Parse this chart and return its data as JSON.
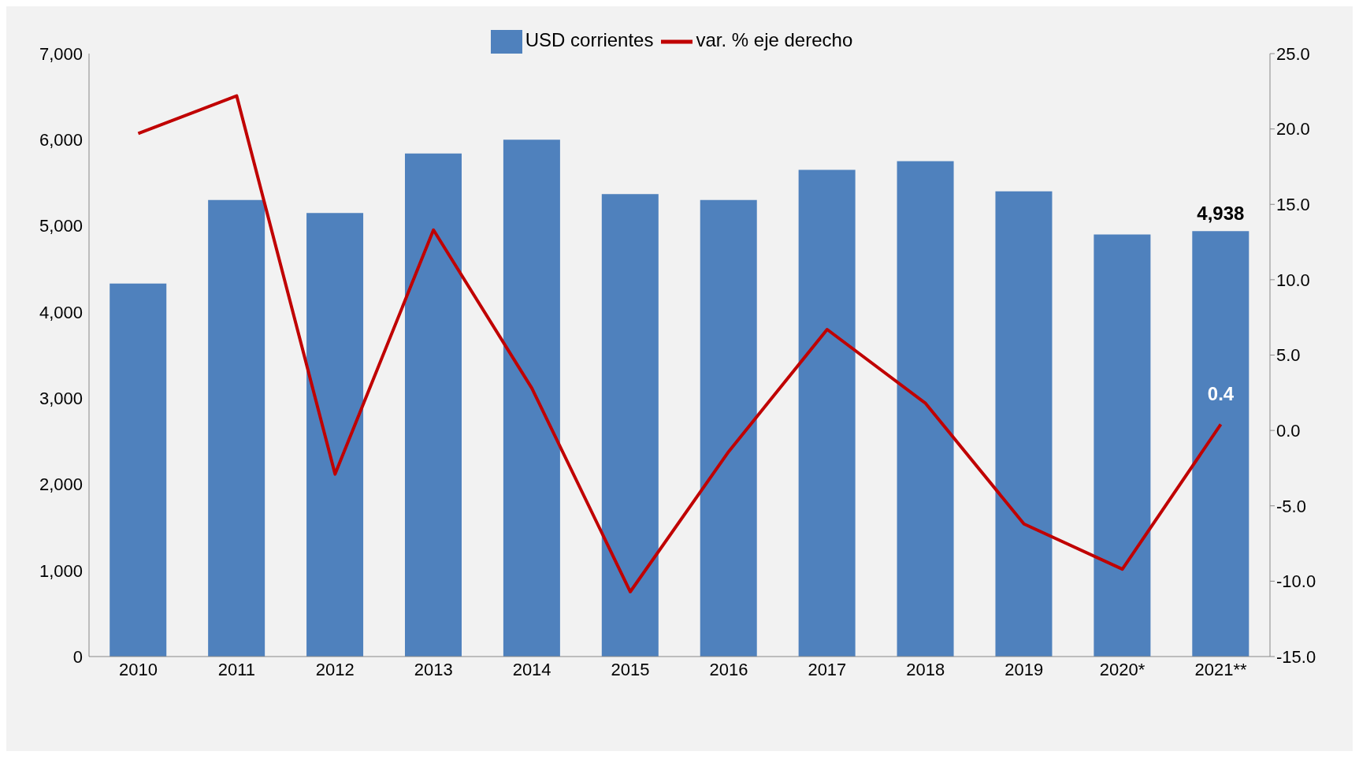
{
  "chart_data": {
    "type": "bar",
    "categories": [
      "2010",
      "2011",
      "2012",
      "2013",
      "2014",
      "2015",
      "2016",
      "2017",
      "2018",
      "2019",
      "2020*",
      "2021**"
    ],
    "series": [
      {
        "name": "USD corrientes",
        "color": "#4f81bd",
        "values": [
          4330,
          5300,
          5150,
          5840,
          6000,
          5370,
          5300,
          5650,
          5750,
          5400,
          4900,
          4938
        ],
        "value_labels": [
          null,
          null,
          null,
          null,
          null,
          null,
          null,
          null,
          null,
          null,
          null,
          "4,938"
        ]
      },
      {
        "name": "var. % eje derecho",
        "type": "line",
        "axis": "y2",
        "color": "#c00000",
        "values": [
          19.7,
          22.2,
          -2.9,
          13.3,
          2.8,
          -10.7,
          -1.4,
          6.7,
          1.8,
          -6.2,
          -9.2,
          0.4
        ],
        "value_labels": [
          null,
          null,
          null,
          null,
          null,
          null,
          null,
          null,
          null,
          null,
          null,
          "0.4"
        ]
      }
    ],
    "ylim": [
      0,
      7000
    ],
    "yticks": [
      0,
      {
        "value": 1000,
        "label": "1,000"
      },
      {
        "value": 2000,
        "label": "2,000"
      },
      {
        "value": 3000,
        "label": "3,000"
      },
      {
        "value": 4000,
        "label": "4,000"
      },
      {
        "value": 5000,
        "label": "5,000"
      },
      {
        "value": 6000,
        "label": "6,000"
      },
      {
        "value": 7000,
        "label": "7,000"
      }
    ],
    "y2lim": [
      -15,
      25
    ],
    "y2ticks": [
      {
        "value": -15,
        "label": "-15.0"
      },
      {
        "value": -10,
        "label": "-10.0"
      },
      {
        "value": -5,
        "label": "-5.0"
      },
      {
        "value": 0,
        "label": "0.0"
      },
      {
        "value": 5,
        "label": "5.0"
      },
      {
        "value": 10,
        "label": "10.0"
      },
      {
        "value": 15,
        "label": "15.0"
      },
      {
        "value": 20,
        "label": "20.0"
      },
      {
        "value": 25,
        "label": "25.0"
      }
    ],
    "grid": false,
    "legend": "top",
    "marker": "none",
    "line_style": "solid"
  }
}
